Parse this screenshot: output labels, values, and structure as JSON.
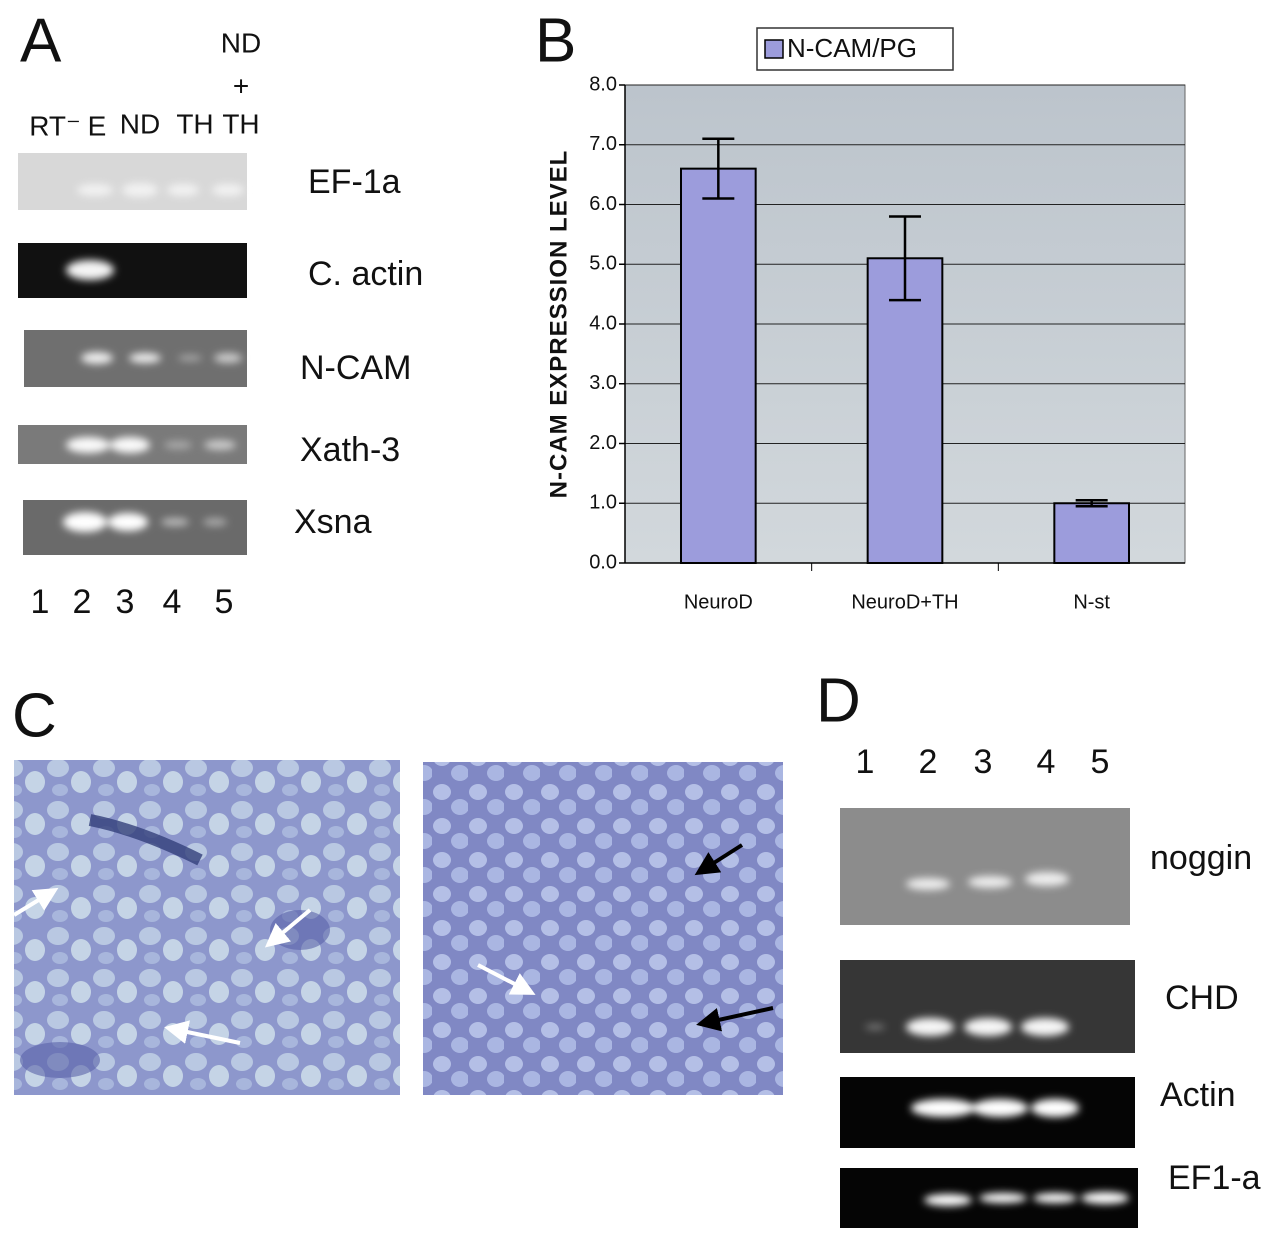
{
  "panel_a": {
    "letter": "A",
    "column_headers": [
      "RT⁻",
      "E",
      "ND",
      "TH"
    ],
    "combined_header": [
      "ND",
      "+",
      "TH"
    ],
    "gels": [
      "EF-1a",
      "C. actin",
      "N-CAM",
      "Xath-3",
      "Xsna"
    ],
    "lanes": [
      "1",
      "2",
      "3",
      "4",
      "5"
    ]
  },
  "chart_data": {
    "type": "bar",
    "letter": "B",
    "y_label": "N-CAM EXPRESSION LEVEL",
    "categories": [
      "NeuroD",
      "NeuroD+TH",
      "N-st"
    ],
    "series": [
      {
        "name": "N-CAM/PG",
        "color": "#9c9cdc",
        "values": [
          6.6,
          5.1,
          1.0
        ],
        "errors": [
          0.5,
          0.7,
          0.05
        ]
      }
    ],
    "ylim": [
      0,
      8
    ],
    "yticks": [
      {
        "value": 0,
        "label": "0.0"
      },
      {
        "value": 1,
        "label": "1.0"
      },
      {
        "value": 2,
        "label": "2.0"
      },
      {
        "value": 3,
        "label": "3.0"
      },
      {
        "value": 4,
        "label": "4.0"
      },
      {
        "value": 5,
        "label": "5.0"
      },
      {
        "value": 6,
        "label": "6.0"
      },
      {
        "value": 7,
        "label": "7.0"
      },
      {
        "value": 8,
        "label": "8.0"
      }
    ],
    "grid": true,
    "legend": "top"
  },
  "panel_c": {
    "letter": "C"
  },
  "panel_d": {
    "letter": "D",
    "lanes": [
      "1",
      "2",
      "3",
      "4",
      "5"
    ],
    "gels": [
      "noggin",
      "CHD",
      "Actin",
      "EF1-a"
    ]
  }
}
